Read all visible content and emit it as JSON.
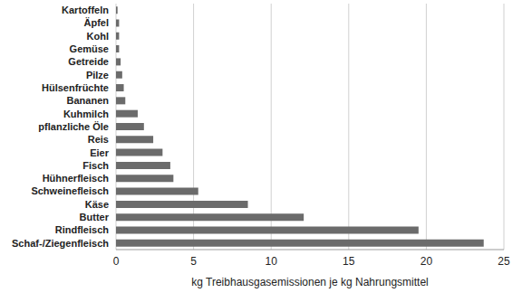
{
  "chart_data": {
    "type": "bar",
    "orientation": "horizontal",
    "x_label": "kg Treibhausgasemissionen je kg Nahrungsmittel",
    "categories": [
      "Kartoffeln",
      "Äpfel",
      "Kohl",
      "Gemüse",
      "Getreide",
      "Pilze",
      "Hülsenfrüchte",
      "Bananen",
      "Kuhmilch",
      "pflanzliche Öle",
      "Reis",
      "Eier",
      "Fisch",
      "Hühnerfleisch",
      "Schweinefleisch",
      "Käse",
      "Butter",
      "Rindfleisch",
      "Schaf-/Ziegenfleisch"
    ],
    "values": [
      0.1,
      0.2,
      0.2,
      0.2,
      0.3,
      0.4,
      0.5,
      0.6,
      1.4,
      1.8,
      2.4,
      3.0,
      3.5,
      3.7,
      5.3,
      8.5,
      12.1,
      19.5,
      23.7
    ],
    "color": "#6b6b6b",
    "xlim": [
      0,
      25
    ],
    "xticks": [
      0,
      5,
      10,
      15,
      20,
      25
    ],
    "grid": true
  }
}
